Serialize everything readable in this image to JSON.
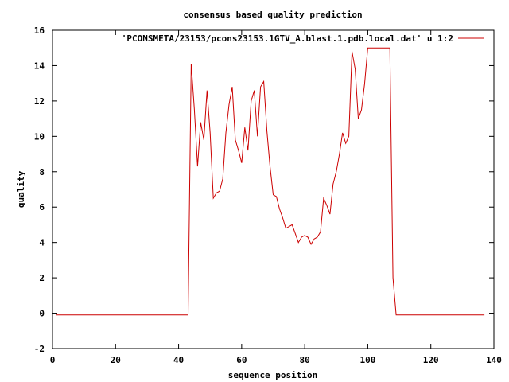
{
  "chart_data": {
    "type": "line",
    "title": "consensus based quality prediction",
    "xlabel": "sequence position",
    "ylabel": "quality",
    "xlim": [
      0,
      140
    ],
    "ylim": [
      -2,
      16
    ],
    "xticks": [
      0,
      20,
      40,
      60,
      80,
      100,
      120,
      140
    ],
    "yticks": [
      -2,
      0,
      2,
      4,
      6,
      8,
      10,
      12,
      14,
      16
    ],
    "grid": false,
    "legend_position": "top-right",
    "colors": {
      "series": "#cc0000",
      "axes": "#000000",
      "background": "#ffffff"
    },
    "series": [
      {
        "name": "'PCONSMETA/23153/pcons23153.1GTV_A.blast.1.pdb.local.dat' u 1:2",
        "x": [
          1,
          2,
          3,
          4,
          5,
          6,
          7,
          8,
          9,
          10,
          11,
          12,
          13,
          14,
          15,
          16,
          17,
          18,
          19,
          20,
          21,
          22,
          23,
          24,
          25,
          26,
          27,
          28,
          29,
          30,
          31,
          32,
          33,
          34,
          35,
          36,
          37,
          38,
          39,
          40,
          41,
          42,
          43,
          44,
          45,
          46,
          47,
          48,
          49,
          50,
          51,
          52,
          53,
          54,
          55,
          56,
          57,
          58,
          59,
          60,
          61,
          62,
          63,
          64,
          65,
          66,
          67,
          68,
          69,
          70,
          71,
          72,
          73,
          74,
          75,
          76,
          77,
          78,
          79,
          80,
          81,
          82,
          83,
          84,
          85,
          86,
          87,
          88,
          89,
          90,
          91,
          92,
          93,
          94,
          95,
          96,
          97,
          98,
          99,
          100,
          101,
          102,
          103,
          104,
          105,
          106,
          107,
          108,
          109,
          110,
          111,
          112,
          113,
          114,
          115,
          116,
          117,
          118,
          119,
          120,
          121,
          122,
          123,
          124,
          125,
          126,
          127,
          128,
          129,
          130,
          131,
          132,
          133,
          134,
          135,
          136,
          137
        ],
        "y": [
          -0.1,
          -0.1,
          -0.1,
          -0.1,
          -0.1,
          -0.1,
          -0.1,
          -0.1,
          -0.1,
          -0.1,
          -0.1,
          -0.1,
          -0.1,
          -0.1,
          -0.1,
          -0.1,
          -0.1,
          -0.1,
          -0.1,
          -0.1,
          -0.1,
          -0.1,
          -0.1,
          -0.1,
          -0.1,
          -0.1,
          -0.1,
          -0.1,
          -0.1,
          -0.1,
          -0.1,
          -0.1,
          -0.1,
          -0.1,
          -0.1,
          -0.1,
          -0.1,
          -0.1,
          -0.1,
          -0.1,
          -0.1,
          -0.1,
          -0.1,
          14.1,
          11.5,
          8.3,
          10.8,
          9.8,
          12.6,
          10.2,
          6.5,
          6.8,
          6.9,
          7.6,
          10.2,
          11.8,
          12.8,
          9.8,
          9.2,
          8.5,
          10.5,
          9.2,
          12.0,
          12.6,
          10.0,
          12.8,
          13.1,
          10.3,
          8.3,
          6.7,
          6.6,
          5.9,
          5.4,
          4.8,
          4.9,
          5.0,
          4.5,
          4.0,
          4.3,
          4.4,
          4.3,
          3.9,
          4.2,
          4.3,
          4.6,
          6.5,
          6.1,
          5.6,
          7.3,
          8.0,
          9.0,
          10.2,
          9.6,
          10.0,
          14.8,
          13.8,
          11.0,
          11.5,
          13.0,
          15.0,
          15.0,
          15.0,
          15.0,
          15.0,
          15.0,
          15.0,
          15.0,
          2.0,
          -0.1,
          -0.1,
          -0.1,
          -0.1,
          -0.1,
          -0.1,
          -0.1,
          -0.1,
          -0.1,
          -0.1,
          -0.1,
          -0.1,
          -0.1,
          -0.1,
          -0.1,
          -0.1,
          -0.1,
          -0.1,
          -0.1,
          -0.1,
          -0.1,
          -0.1,
          -0.1,
          -0.1,
          -0.1,
          -0.1,
          -0.1,
          -0.1,
          -0.1
        ]
      }
    ]
  }
}
